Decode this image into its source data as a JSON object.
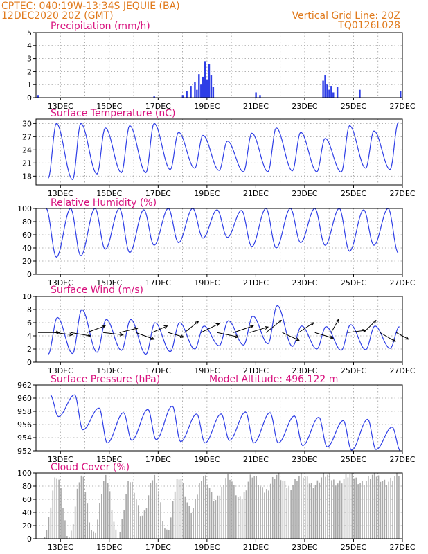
{
  "header": {
    "line1_left": "CPTEC:   040:19W-13:34S   JEQUIE (BA)",
    "line1_right": "Vertical Grid Line: 20Z",
    "line2_left": "12DEC2020 20Z (GMT)",
    "line2_right": "TQ0126L028"
  },
  "colors": {
    "header": "#e07a1c",
    "title": "#d8127e",
    "line": "#2e3ee6",
    "cloud": "#a9a9a9",
    "wind_arrow": "#000000"
  },
  "chart_data": [
    {
      "type": "bar",
      "title": "Precipitation (mm/h)",
      "x_tick_labels": [
        "13DEC",
        "15DEC",
        "17DEC",
        "19DEC",
        "21DEC",
        "23DEC",
        "25DEC",
        "27DEC"
      ],
      "xlim": [
        "12DEC2020 20Z",
        "27DEC2020 20Z"
      ],
      "ylim": [
        0,
        5
      ],
      "y_ticks": [
        0,
        1,
        2,
        3,
        4,
        5
      ],
      "grid": true,
      "x": [
        "12DEC 22Z",
        "17DEC 16Z",
        "18DEC 20Z",
        "19DEC 00Z",
        "19DEC 04Z",
        "19DEC 08Z",
        "19DEC 10Z",
        "19DEC 12Z",
        "19DEC 14Z",
        "19DEC 16Z",
        "19DEC 18Z",
        "19DEC 20Z",
        "19DEC 22Z",
        "20DEC 00Z",
        "20DEC 02Z",
        "21DEC 20Z",
        "22DEC 00Z",
        "24DEC 14Z",
        "24DEC 16Z",
        "24DEC 18Z",
        "24DEC 20Z",
        "24DEC 22Z",
        "25DEC 00Z",
        "25DEC 04Z",
        "26DEC 02Z",
        "27DEC 18Z"
      ],
      "values": [
        0.2,
        0.1,
        0.2,
        0.5,
        0.9,
        1.2,
        0.6,
        1.8,
        1.0,
        1.6,
        2.8,
        1.4,
        2.6,
        1.7,
        0.8,
        0.4,
        0.2,
        1.3,
        1.7,
        1.0,
        0.6,
        0.9,
        0.4,
        0.8,
        0.6,
        0.5
      ]
    },
    {
      "type": "line",
      "title": "Surface Temperature (nC)",
      "x_tick_labels": [
        "13DEC",
        "15DEC",
        "17DEC",
        "19DEC",
        "21DEC",
        "23DEC",
        "25DEC",
        "27DEC"
      ],
      "xlim": [
        "12DEC2020 20Z",
        "27DEC2020 20Z"
      ],
      "ylim": [
        16,
        31
      ],
      "y_ticks": [
        18,
        21,
        24,
        27,
        30
      ],
      "grid": true,
      "daily_max": [
        30.0,
        30.0,
        29.0,
        29.5,
        30.0,
        28.0,
        27.3,
        26.0,
        27.8,
        29.0,
        28.0,
        26.6,
        29.5,
        28.3,
        30.3,
        30.2
      ],
      "daily_min": [
        17.5,
        17.2,
        18.5,
        18.8,
        18.8,
        19.5,
        19.8,
        19.3,
        19.0,
        19.0,
        19.2,
        19.0,
        18.9,
        19.8,
        19.5,
        22.5
      ]
    },
    {
      "type": "line",
      "title": "Relative Humidity (%)",
      "x_tick_labels": [
        "13DEC",
        "15DEC",
        "17DEC",
        "19DEC",
        "21DEC",
        "23DEC",
        "25DEC",
        "27DEC"
      ],
      "xlim": [
        "12DEC2020 20Z",
        "27DEC2020 20Z"
      ],
      "ylim": [
        0,
        100
      ],
      "y_ticks": [
        0,
        20,
        40,
        60,
        80,
        100
      ],
      "grid": true,
      "daily_min": [
        26,
        28,
        38,
        33,
        44,
        48,
        55,
        56,
        42,
        40,
        48,
        44,
        35,
        44,
        32,
        40,
        55
      ],
      "daily_max": [
        100,
        100,
        100,
        100,
        98,
        100,
        100,
        98,
        97,
        100,
        100,
        100,
        100,
        98,
        100,
        100,
        100
      ]
    },
    {
      "type": "line",
      "title": "Surface Wind (m/s)",
      "x_tick_labels": [
        "13DEC",
        "15DEC",
        "17DEC",
        "19DEC",
        "21DEC",
        "23DEC",
        "25DEC",
        "27DEC"
      ],
      "xlim": [
        "12DEC2020 20Z",
        "27DEC2020 20Z"
      ],
      "ylim": [
        0,
        10
      ],
      "y_ticks": [
        0,
        2,
        4,
        6,
        8,
        10
      ],
      "grid": true,
      "daily_max": [
        6.8,
        8.0,
        6.5,
        6.5,
        6.0,
        6.0,
        5.5,
        6.3,
        7.0,
        8.6,
        5.5,
        5.4,
        5.7,
        5.5,
        5.4
      ],
      "daily_min": [
        1.2,
        1.3,
        1.5,
        1.8,
        1.2,
        1.6,
        2.0,
        2.5,
        2.6,
        2.8,
        2.4,
        2.0,
        1.8,
        1.9,
        2.1
      ],
      "arrows": [
        {
          "x": "12DEC 22Z",
          "u": 14,
          "v": 0
        },
        {
          "x": "13DEC 14Z",
          "u": 12,
          "v": 2
        },
        {
          "x": "14DEC 06Z",
          "u": 13,
          "v": 3
        },
        {
          "x": "14DEC 22Z",
          "u": 12,
          "v": -6
        },
        {
          "x": "15DEC 14Z",
          "u": 13,
          "v": 2
        },
        {
          "x": "16DEC 06Z",
          "u": 12,
          "v": -4
        },
        {
          "x": "16DEC 22Z",
          "u": 12,
          "v": 6
        },
        {
          "x": "17DEC 14Z",
          "u": 10,
          "v": -6
        },
        {
          "x": "18DEC 06Z",
          "u": 10,
          "v": 4
        },
        {
          "x": "18DEC 22Z",
          "u": 9,
          "v": -10
        },
        {
          "x": "19DEC 14Z",
          "u": 12,
          "v": -8
        },
        {
          "x": "20DEC 06Z",
          "u": 14,
          "v": 4
        },
        {
          "x": "20DEC 22Z",
          "u": 13,
          "v": -6
        },
        {
          "x": "21DEC 14Z",
          "u": 12,
          "v": -5
        },
        {
          "x": "22DEC 06Z",
          "u": 10,
          "v": -11
        },
        {
          "x": "22DEC 22Z",
          "u": 11,
          "v": 7
        },
        {
          "x": "23DEC 14Z",
          "u": 10,
          "v": -9
        },
        {
          "x": "24DEC 06Z",
          "u": 12,
          "v": 5
        },
        {
          "x": "24DEC 22Z",
          "u": 5,
          "v": -12
        },
        {
          "x": "25DEC 14Z",
          "u": 12,
          "v": -2
        },
        {
          "x": "26DEC 06Z",
          "u": 8,
          "v": -11
        },
        {
          "x": "26DEC 22Z",
          "u": 10,
          "v": 8
        },
        {
          "x": "27DEC 14Z",
          "u": 8,
          "v": 6
        }
      ]
    },
    {
      "type": "line",
      "title": "Surface Pressure (hPa)",
      "subtitle": "Model Altitude: 496.122 m",
      "x_tick_labels": [
        "13DEC",
        "15DEC",
        "17DEC",
        "19DEC",
        "21DEC",
        "23DEC",
        "25DEC",
        "27DEC"
      ],
      "xlim": [
        "12DEC2020 20Z",
        "27DEC2020 20Z"
      ],
      "ylim": [
        952,
        962
      ],
      "y_ticks": [
        952,
        954,
        956,
        958,
        960,
        962
      ],
      "grid": true,
      "daily_max": [
        960.5,
        960.5,
        958.5,
        957.8,
        958.3,
        958.8,
        957.6,
        957.6,
        957.9,
        957.8,
        957.3,
        957.1,
        956.6,
        956.8,
        955.6,
        956.4
      ],
      "daily_min": [
        957.2,
        955.2,
        953.2,
        953.6,
        953.7,
        953.4,
        953.2,
        953.6,
        953.2,
        953.2,
        952.8,
        952.6,
        952.1,
        952.2,
        952.0,
        952.5
      ]
    },
    {
      "type": "bar",
      "title": "Cloud Cover (%)",
      "x_tick_labels": [
        "13DEC",
        "15DEC",
        "17DEC",
        "19DEC",
        "21DEC",
        "23DEC",
        "25DEC",
        "27DEC"
      ],
      "xlim": [
        "12DEC2020 20Z",
        "27DEC2020 20Z"
      ],
      "ylim": [
        0,
        100
      ],
      "y_ticks": [
        0,
        20,
        40,
        60,
        80,
        100
      ],
      "grid": true,
      "daily_min": [
        8,
        3,
        8,
        5,
        35,
        10,
        42,
        58,
        60,
        72,
        78,
        82,
        85,
        85,
        86,
        88
      ],
      "daily_max": [
        95,
        95,
        92,
        88,
        95,
        95,
        96,
        96,
        97,
        97,
        97,
        97,
        97,
        97,
        97,
        97
      ]
    }
  ]
}
